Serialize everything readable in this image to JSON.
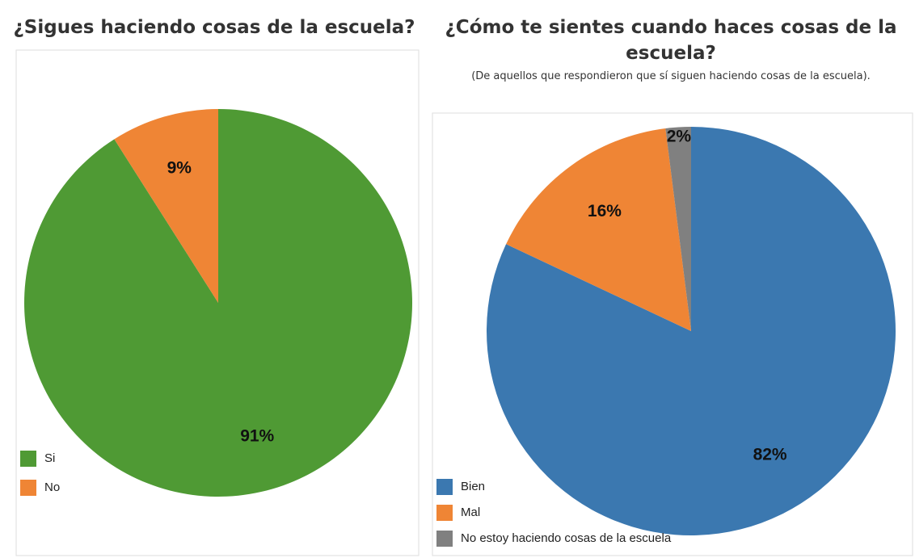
{
  "chart_data": [
    {
      "type": "pie",
      "title": "¿Sigues haciendo cosas de la escuela?",
      "categories": [
        "Si",
        "No"
      ],
      "values": [
        91,
        9
      ],
      "value_labels": [
        "91%",
        "9%"
      ],
      "colors": [
        "#4f9a34",
        "#ef8535"
      ],
      "legend": "bottom-left"
    },
    {
      "type": "pie",
      "title": "¿Cómo te sientes cuando haces cosas de la escuela?",
      "subtitle": "(De aquellos que respondieron que sí siguen haciendo cosas de la escuela).",
      "categories": [
        "Bien",
        "Mal",
        "No estoy haciendo cosas de la escuela"
      ],
      "values": [
        82,
        16,
        2
      ],
      "value_labels": [
        "82%",
        "16%",
        "2%"
      ],
      "colors": [
        "#3b78b0",
        "#ef8535",
        "#808080"
      ],
      "legend": "bottom-left"
    }
  ]
}
